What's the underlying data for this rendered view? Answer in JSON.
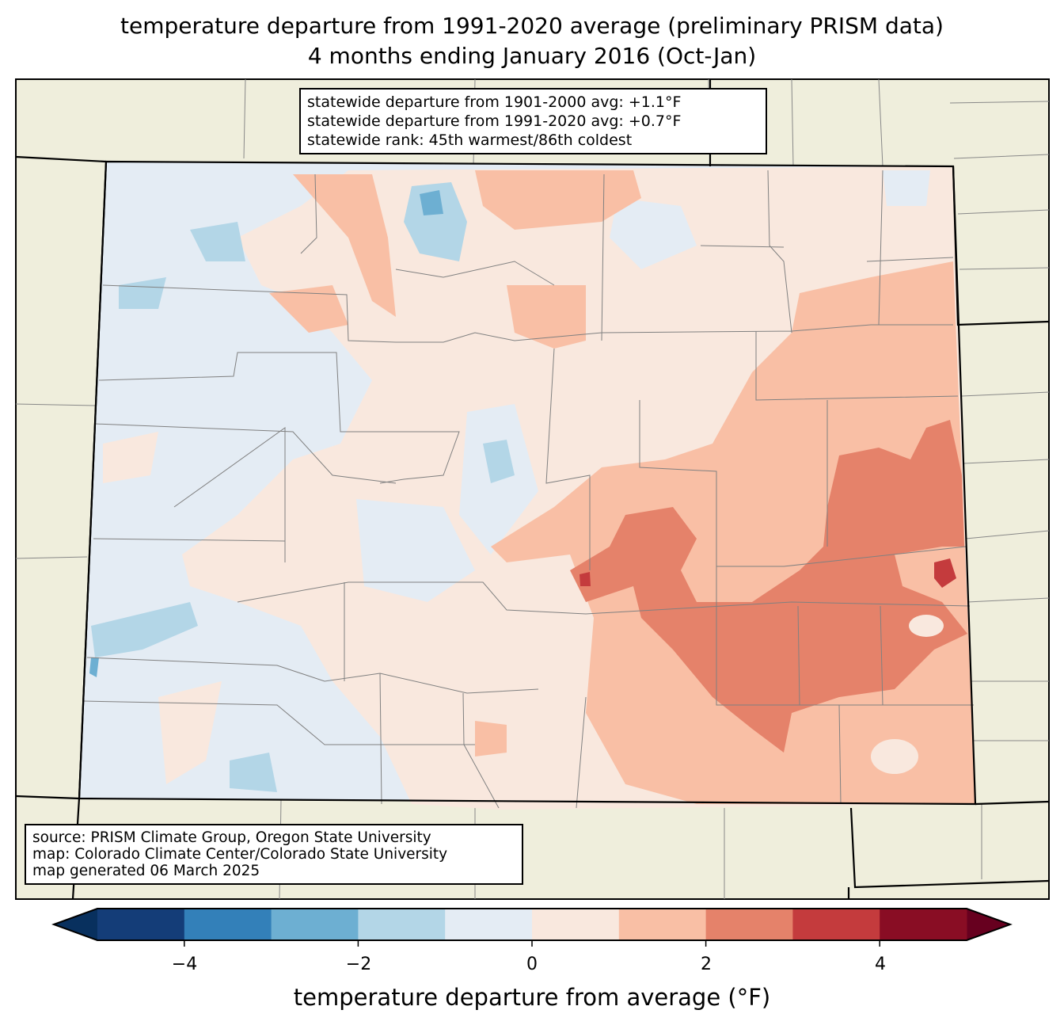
{
  "title": {
    "line1": "temperature departure from 1991-2020 average (preliminary PRISM data)",
    "line2": "4 months ending January 2016 (Oct-Jan)"
  },
  "stats": {
    "line1": "statewide departure from 1901-2000 avg: +1.1°F",
    "line2": "statewide departure from 1991-2020 avg: +0.7°F",
    "line3": "statewide rank: 45th warmest/86th coldest"
  },
  "source": {
    "line1": "source: PRISM Climate Group, Oregon State University",
    "line2": "map: Colorado Climate Center/Colorado State University",
    "line3": "map generated 06 March 2025"
  },
  "colorbar": {
    "label": "temperature departure from average (°F)",
    "ticks": [
      "−4",
      "−2",
      "0",
      "2",
      "4"
    ],
    "bins": [
      -5,
      -4,
      -3,
      -2,
      -1,
      0,
      1,
      2,
      3,
      4,
      5
    ],
    "colors": [
      "#143d78",
      "#3380b9",
      "#6dafd2",
      "#b3d6e7",
      "#e4ecf4",
      "#f9e8de",
      "#f9bfa5",
      "#e5826a",
      "#c43b3d",
      "#890d24"
    ],
    "under_color": "#08305e",
    "over_color": "#67001f",
    "background": "#efeedc"
  }
}
